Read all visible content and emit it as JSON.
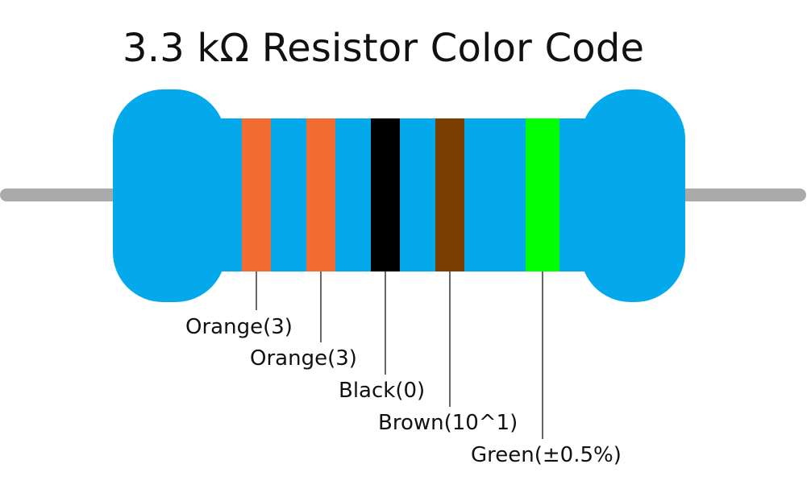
{
  "title": "3.3 kΩ Resistor Color Code",
  "colors": {
    "body": "#03a9eb",
    "lead": "#aaaaaa",
    "pointer": "#000000",
    "text": "#111111"
  },
  "bands": [
    {
      "name": "Orange",
      "value": "3",
      "color": "#f26b30",
      "label": "Orange(3)"
    },
    {
      "name": "Orange",
      "value": "3",
      "color": "#f26b30",
      "label": "Orange(3)"
    },
    {
      "name": "Black",
      "value": "0",
      "color": "#000000",
      "label": "Black(0)"
    },
    {
      "name": "Brown",
      "value": "10^1",
      "color": "#7a3f00",
      "label": "Brown(10^1)"
    },
    {
      "name": "Green",
      "value": "±0.5%",
      "color": "#00ff00",
      "label": "Green(±0.5%)"
    }
  ]
}
